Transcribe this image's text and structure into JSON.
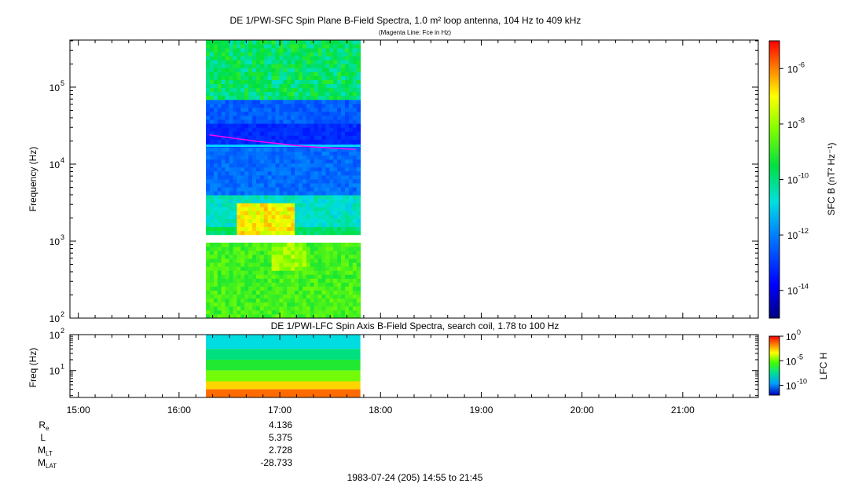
{
  "top_panel": {
    "title": "DE 1/PWI-SFC  Spin Plane B-Field Spectra, 1.0 m² loop antenna, 104 Hz to 409 kHz",
    "subtitle": "(Magenta Line: Fce in Hz)",
    "ylabel": "Frequency (Hz)",
    "colorbar_label": "SFC B (nT² Hz⁻¹)",
    "colorbar_ticks": [
      {
        "exp": "-6",
        "value": 1e-06
      },
      {
        "exp": "-8",
        "value": 1e-08
      },
      {
        "exp": "-10",
        "value": 1e-10
      },
      {
        "exp": "-12",
        "value": 1e-12
      },
      {
        "exp": "-14",
        "value": 1e-14
      }
    ]
  },
  "bottom_panel": {
    "title": "DE 1/PWI-LFC  Spin Axis B-Field Spectra, search coil, 1.78 to 100 Hz",
    "ylabel": "Freq (Hz)",
    "colorbar_label": "LFC H",
    "colorbar_ticks": [
      {
        "text": "10",
        "exp": "0",
        "value": 1
      },
      {
        "text": "10",
        "exp": "-5",
        "value": 1e-05
      },
      {
        "text": "10",
        "exp": "-10",
        "value": 1e-10
      }
    ]
  },
  "orbit": {
    "labels": [
      {
        "main": "R",
        "sub": "e"
      },
      {
        "main": "L",
        "sub": ""
      },
      {
        "main": "M",
        "sub": "LT"
      },
      {
        "main": "M",
        "sub": "LAT"
      }
    ],
    "values": [
      "4.136",
      "5.375",
      "2.728",
      "-28.733"
    ]
  },
  "footer": "1983-07-24 (205) 14:55 to 21:45",
  "chart_data": [
    {
      "type": "heatmap",
      "title": "DE 1/PWI-SFC  Spin Plane B-Field Spectra, 1.0 m² loop antenna, 104 Hz to 409 kHz",
      "subtitle": "(Magenta Line: Fce in Hz)",
      "ylabel": "Frequency (Hz)",
      "x_range": [
        "14:55",
        "21:45"
      ],
      "x_ticks": [
        "15:00",
        "16:00",
        "17:00",
        "18:00",
        "19:00",
        "20:00",
        "21:00"
      ],
      "y_scale": "log",
      "y_range": [
        100,
        409000
      ],
      "y_ticks": [
        {
          "label": "10",
          "exp": "2",
          "value": 100
        },
        {
          "label": "10",
          "exp": "3",
          "value": 1000
        },
        {
          "label": "10",
          "exp": "4",
          "value": 10000
        },
        {
          "label": "10",
          "exp": "5",
          "value": 100000
        }
      ],
      "data_coverage": [
        "16:16",
        "17:48"
      ],
      "data_gap_hz": [
        1000,
        1150
      ],
      "colorscale": "rainbow",
      "color_range": [
        1e-15,
        1e-05
      ],
      "color_scale": "log",
      "fce_line": {
        "color": "#ff00ff",
        "points": [
          [
            "16:18",
            24000
          ],
          [
            "16:45",
            20000
          ],
          [
            "17:15",
            17000
          ],
          [
            "17:45",
            15500
          ]
        ]
      },
      "features": [
        {
          "name": "background_upper_band",
          "t": [
            "16:16",
            "17:48"
          ],
          "f": [
            60000,
            409000
          ],
          "level": 1e-10
        },
        {
          "name": "emission_burst",
          "t": [
            "16:35",
            "17:10"
          ],
          "f": [
            1200,
            3000
          ],
          "level": 1e-07
        },
        {
          "name": "emission_burst_lower",
          "t": [
            "16:55",
            "17:15"
          ],
          "f": [
            400,
            1000
          ],
          "level": 1e-08
        },
        {
          "name": "low_freq_band",
          "t": [
            "16:16",
            "17:48"
          ],
          "f": [
            100,
            1000
          ],
          "level": 1e-09
        }
      ]
    },
    {
      "type": "heatmap",
      "title": "DE 1/PWI-LFC  Spin Axis B-Field Spectra, search coil, 1.78 to 100 Hz",
      "ylabel": "Freq (Hz)",
      "y_scale": "log",
      "y_range": [
        1.78,
        100
      ],
      "y_ticks": [
        {
          "label": "10",
          "exp": "1",
          "value": 10
        },
        {
          "label": "10",
          "exp": "2",
          "value": 100
        }
      ],
      "data_coverage": [
        "16:16",
        "17:48"
      ],
      "color_range": [
        1e-12,
        1
      ],
      "color_scale": "log",
      "bands": [
        {
          "f": [
            40,
            100
          ],
          "level": 1e-07
        },
        {
          "f": [
            20,
            40
          ],
          "level": 1e-06
        },
        {
          "f": [
            10,
            20
          ],
          "level": 1e-05
        },
        {
          "f": [
            5,
            10
          ],
          "level": 0.0001
        },
        {
          "f": [
            3,
            5
          ],
          "level": 0.01
        },
        {
          "f": [
            1.78,
            3
          ],
          "level": 0.1
        }
      ]
    }
  ]
}
